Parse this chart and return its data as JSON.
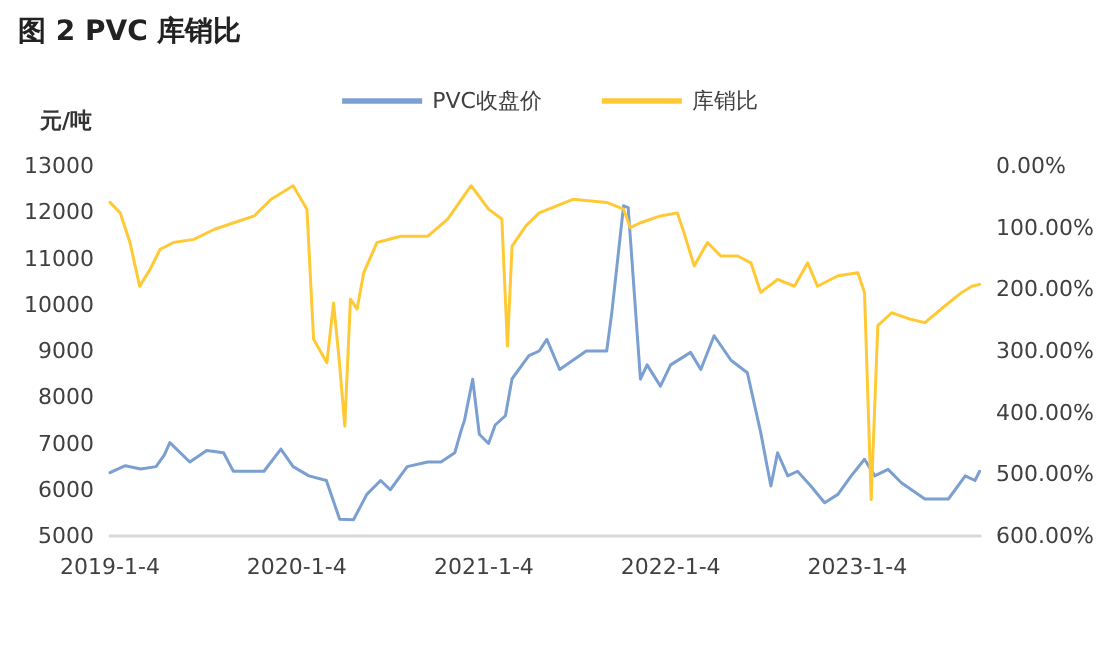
{
  "chart_data": {
    "type": "line",
    "title": "图 2 PVC 库销比",
    "ylabel": "元/吨",
    "xlim": [
      "2019-01-04",
      "2023-09-01"
    ],
    "xticks": [
      {
        "value": "2019-01-04",
        "label": "2019-1-4"
      },
      {
        "value": "2020-01-04",
        "label": "2020-1-4"
      },
      {
        "value": "2021-01-04",
        "label": "2021-1-4"
      },
      {
        "value": "2022-01-04",
        "label": "2022-1-4"
      },
      {
        "value": "2023-01-04",
        "label": "2023-1-4"
      }
    ],
    "ylim": [
      5000,
      13000
    ],
    "yticks": [
      5000,
      6000,
      7000,
      8000,
      9000,
      10000,
      11000,
      12000,
      13000
    ],
    "y2lim": [
      600,
      0
    ],
    "y2ticks": [
      {
        "value": 600,
        "label": "600.00%"
      },
      {
        "value": 500,
        "label": "500.00%"
      },
      {
        "value": 400,
        "label": "400.00%"
      },
      {
        "value": 300,
        "label": "300.00%"
      },
      {
        "value": 200,
        "label": "200.00%"
      },
      {
        "value": 100,
        "label": "100.00%"
      },
      {
        "value": 0,
        "label": "0.00%"
      }
    ],
    "grid": false,
    "legend": "top",
    "marker": "none",
    "series": [
      {
        "name": "PVC收盘价",
        "color": "#7a9fd0",
        "x": [
          "2019-01-04",
          "2019-02-03",
          "2019-03-05",
          "2019-04-04",
          "2019-04-20",
          "2019-05-01",
          "2019-06-09",
          "2019-07-12",
          "2019-08-14",
          "2019-09-02",
          "2019-11-01",
          "2019-12-04",
          "2019-12-28",
          "2020-01-28",
          "2020-03-02",
          "2020-03-28",
          "2020-04-24",
          "2020-05-20",
          "2020-06-16",
          "2020-07-05",
          "2020-08-07",
          "2020-09-16",
          "2020-10-12",
          "2020-11-08",
          "2020-11-21",
          "2020-11-27",
          "2020-12-13",
          "2020-12-26",
          "2021-01-13",
          "2021-01-26",
          "2021-02-15",
          "2021-02-28",
          "2021-04-02",
          "2021-04-22",
          "2021-05-07",
          "2021-06-01",
          "2021-07-23",
          "2021-09-01",
          "2021-09-11",
          "2021-10-04",
          "2021-10-13",
          "2021-11-06",
          "2021-11-19",
          "2021-12-15",
          "2022-01-04",
          "2022-02-12",
          "2022-03-04",
          "2022-03-30",
          "2022-05-02",
          "2022-06-03",
          "2022-06-29",
          "2022-07-19",
          "2022-08-01",
          "2022-08-21",
          "2022-09-09",
          "2022-10-05",
          "2022-11-01",
          "2022-11-27",
          "2022-12-23",
          "2023-01-18",
          "2023-02-07",
          "2023-03-05",
          "2023-03-31",
          "2023-05-16",
          "2023-07-01",
          "2023-08-03",
          "2023-08-22",
          "2023-08-31"
        ],
        "values": [
          6370,
          6520,
          6450,
          6500,
          6750,
          7020,
          6600,
          6850,
          6800,
          6400,
          6400,
          6880,
          6500,
          6300,
          6200,
          5360,
          5350,
          5900,
          6200,
          6000,
          6500,
          6600,
          6600,
          6800,
          7300,
          7500,
          8390,
          7200,
          7000,
          7400,
          7600,
          8400,
          8900,
          9000,
          9250,
          8600,
          9000,
          9000,
          9830,
          12140,
          12100,
          8390,
          8700,
          8240,
          8700,
          8970,
          8600,
          9330,
          8800,
          8530,
          7240,
          6080,
          6800,
          6300,
          6400,
          6080,
          5720,
          5900,
          6300,
          6660,
          6300,
          6440,
          6150,
          5800,
          5800,
          6300,
          6200,
          6400
        ]
      },
      {
        "name": "库销比",
        "color": "#ffc935",
        "axis": "y2",
        "x": [
          "2019-01-04",
          "2019-01-24",
          "2019-02-12",
          "2019-03-03",
          "2019-03-23",
          "2019-04-12",
          "2019-05-08",
          "2019-06-17",
          "2019-07-26",
          "2019-09-03",
          "2019-10-13",
          "2019-11-15",
          "2019-12-28",
          "2020-01-24",
          "2020-02-06",
          "2020-03-03",
          "2020-03-16",
          "2020-03-27",
          "2020-04-07",
          "2020-04-18",
          "2020-05-01",
          "2020-05-14",
          "2020-06-09",
          "2020-07-25",
          "2020-09-16",
          "2020-10-25",
          "2020-12-10",
          "2021-01-13",
          "2021-02-08",
          "2021-02-19",
          "2021-02-28",
          "2021-03-27",
          "2021-04-22",
          "2021-06-27",
          "2021-09-01",
          "2021-10-04",
          "2021-10-17",
          "2021-11-06",
          "2021-12-15",
          "2022-01-17",
          "2022-01-30",
          "2022-02-19",
          "2022-03-17",
          "2022-04-12",
          "2022-05-15",
          "2022-06-10",
          "2022-06-29",
          "2022-08-01",
          "2022-09-03",
          "2022-09-29",
          "2022-10-18",
          "2022-11-27",
          "2023-01-05",
          "2023-01-18",
          "2023-01-31",
          "2023-02-13",
          "2023-03-12",
          "2023-04-20",
          "2023-05-16",
          "2023-06-24",
          "2023-07-27",
          "2023-08-16",
          "2023-08-31"
        ],
        "values": [
          59,
          76,
          124,
          195,
          168,
          135,
          124,
          119,
          103,
          92,
          81,
          54,
          32,
          70,
          281,
          319,
          222,
          314,
          422,
          216,
          232,
          173,
          124,
          114,
          114,
          86,
          32,
          70,
          86,
          292,
          130,
          97,
          76,
          54,
          59,
          70,
          100,
          92,
          81,
          76,
          108,
          162,
          124,
          146,
          146,
          157,
          205,
          184,
          195,
          157,
          195,
          178,
          173,
          205,
          541,
          259,
          238,
          249,
          254,
          227,
          205,
          195,
          192
        ]
      }
    ]
  }
}
